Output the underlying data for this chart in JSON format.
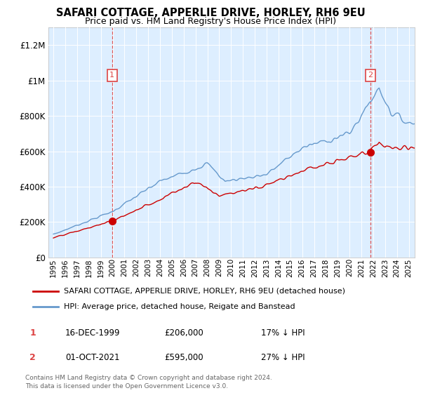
{
  "title": "SAFARI COTTAGE, APPERLIE DRIVE, HORLEY, RH6 9EU",
  "subtitle": "Price paid vs. HM Land Registry's House Price Index (HPI)",
  "legend_line1": "SAFARI COTTAGE, APPERLIE DRIVE, HORLEY, RH6 9EU (detached house)",
  "legend_line2": "HPI: Average price, detached house, Reigate and Banstead",
  "footer": "Contains HM Land Registry data © Crown copyright and database right 2024.\nThis data is licensed under the Open Government Licence v3.0.",
  "sale1_date": "16-DEC-1999",
  "sale1_price": "£206,000",
  "sale1_hpi": "17% ↓ HPI",
  "sale2_date": "01-OCT-2021",
  "sale2_price": "£595,000",
  "sale2_hpi": "27% ↓ HPI",
  "property_color": "#cc0000",
  "hpi_color": "#6699cc",
  "background_color": "#ddeeff",
  "vline_color": "#dd4444",
  "ylim": [
    0,
    1300000
  ],
  "yticks": [
    0,
    200000,
    400000,
    600000,
    800000,
    1000000,
    1200000
  ],
  "ytick_labels": [
    "£0",
    "£200K",
    "£400K",
    "£600K",
    "£800K",
    "£1M",
    "£1.2M"
  ],
  "sale1_year_f": 1999.958,
  "sale2_year_f": 2021.75,
  "sale1_price_val": 206000,
  "sale2_price_val": 595000
}
